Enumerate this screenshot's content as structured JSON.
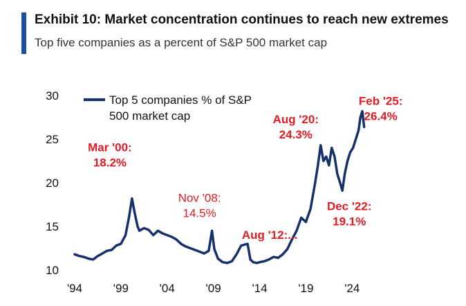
{
  "header": {
    "title": "Exhibit 10: Market concentration continues to reach new extremes",
    "subtitle": "Top five companies as a percent of S&P 500 market cap"
  },
  "colors": {
    "accent": "#1f4fa3",
    "line": "#16306b",
    "annotation": "#e31b23"
  },
  "chart_data": {
    "type": "line",
    "title": "",
    "xlabel": "",
    "ylabel": "",
    "ylim": [
      10,
      30
    ],
    "xlim": [
      1994,
      2025.4
    ],
    "yticks": [
      {
        "value": 10,
        "label": "10"
      },
      {
        "value": 15,
        "label": "15"
      },
      {
        "value": 20,
        "label": "20"
      },
      {
        "value": 25,
        "label": "25"
      },
      {
        "value": 30,
        "label": "30"
      }
    ],
    "xticks": [
      {
        "value": 1994,
        "label": "'94"
      },
      {
        "value": 1999,
        "label": "'99"
      },
      {
        "value": 2004,
        "label": "'04"
      },
      {
        "value": 2009,
        "label": "'09"
      },
      {
        "value": 2014,
        "label": "'14"
      },
      {
        "value": 2019,
        "label": "'19"
      },
      {
        "value": 2024,
        "label": "'24"
      }
    ],
    "grid": false,
    "legend": {
      "position": "top-left",
      "line1": "Top 5 companies % of S&P",
      "line2": "500 market cap"
    },
    "series": [
      {
        "name": "Top 5 companies % of S&P 500 market cap",
        "x": [
          1994.0,
          1994.5,
          1995.0,
          1995.5,
          1996.0,
          1996.5,
          1997.0,
          1997.5,
          1998.0,
          1998.5,
          1999.0,
          1999.5,
          1999.9,
          2000.2,
          2000.5,
          2000.8,
          2001.0,
          2001.5,
          2002.0,
          2002.5,
          2003.0,
          2003.5,
          2004.0,
          2004.5,
          2005.0,
          2005.5,
          2006.0,
          2006.5,
          2007.0,
          2007.5,
          2008.0,
          2008.5,
          2008.85,
          2009.1,
          2009.5,
          2010.0,
          2010.5,
          2011.0,
          2011.5,
          2012.0,
          2012.7,
          2013.0,
          2013.3,
          2013.7,
          2014.0,
          2014.5,
          2015.0,
          2015.5,
          2016.0,
          2016.5,
          2017.0,
          2017.5,
          2018.0,
          2018.5,
          2019.0,
          2019.5,
          2020.0,
          2020.3,
          2020.6,
          2020.9,
          2021.2,
          2021.5,
          2021.8,
          2022.1,
          2022.4,
          2022.7,
          2022.95,
          2023.2,
          2023.5,
          2023.8,
          2024.1,
          2024.4,
          2024.7,
          2024.9,
          2025.1,
          2025.3
        ],
        "values": [
          11.8,
          11.6,
          11.5,
          11.3,
          11.2,
          11.6,
          11.9,
          12.2,
          12.3,
          12.8,
          13.0,
          14.0,
          16.2,
          18.2,
          16.5,
          15.0,
          14.5,
          14.8,
          14.6,
          14.0,
          14.5,
          14.2,
          14.0,
          13.8,
          13.5,
          13.0,
          12.7,
          12.5,
          12.3,
          12.1,
          11.9,
          12.2,
          14.5,
          12.4,
          11.3,
          10.9,
          10.8,
          11.0,
          11.8,
          12.8,
          13.0,
          11.2,
          10.9,
          10.8,
          10.9,
          11.0,
          11.2,
          11.5,
          11.4,
          11.8,
          12.4,
          13.5,
          14.5,
          16.0,
          15.5,
          17.0,
          20.0,
          22.0,
          24.3,
          22.5,
          23.0,
          22.0,
          24.0,
          23.0,
          21.0,
          20.0,
          19.1,
          21.0,
          22.5,
          23.5,
          24.0,
          25.0,
          26.0,
          27.5,
          28.2,
          26.4
        ]
      }
    ],
    "annotations": [
      {
        "lines": [
          "Mar '00:",
          "18.2%"
        ],
        "x": 2000.2,
        "y": 18.2,
        "bold": true
      },
      {
        "lines": [
          "Nov '08:",
          "14.5%"
        ],
        "x": 2008.85,
        "y": 14.5,
        "bold": false
      },
      {
        "lines": [
          "Aug '12:..."
        ],
        "x": 2012.7,
        "y": 13.0,
        "bold": true
      },
      {
        "lines": [
          "Aug '20:",
          "24.3%"
        ],
        "x": 2020.6,
        "y": 24.3,
        "bold": true
      },
      {
        "lines": [
          "Dec '22:",
          "19.1%"
        ],
        "x": 2022.95,
        "y": 19.1,
        "bold": true
      },
      {
        "lines": [
          "Feb '25:",
          "26.4%"
        ],
        "x": 2025.3,
        "y": 26.4,
        "bold": true
      }
    ]
  }
}
